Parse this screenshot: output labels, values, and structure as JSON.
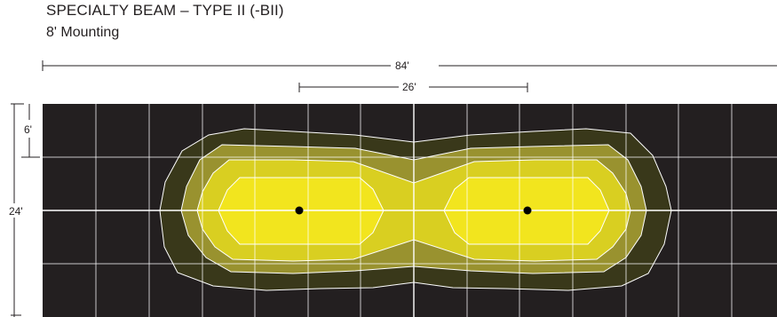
{
  "header": {
    "title": "SPECIALTY BEAM – TYPE II (-BII)",
    "subtitle": "8' Mounting"
  },
  "dimensions": {
    "overall_width": "84'",
    "fixture_spacing": "26'",
    "grid_cell": "6'",
    "overall_height": "24'"
  },
  "colors": {
    "background": "#231f20",
    "grid": "#ffffff",
    "contour_1": "#39381a",
    "contour_2": "#99922f",
    "contour_3": "#d9cf21",
    "contour_4": "#f2e51e",
    "fixture": "#000000"
  },
  "legend": {}
}
